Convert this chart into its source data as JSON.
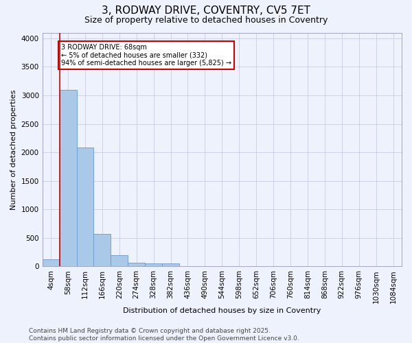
{
  "title1": "3, RODWAY DRIVE, COVENTRY, CV5 7ET",
  "title2": "Size of property relative to detached houses in Coventry",
  "xlabel": "Distribution of detached houses by size in Coventry",
  "ylabel": "Number of detached properties",
  "categories": [
    "4sqm",
    "58sqm",
    "112sqm",
    "166sqm",
    "220sqm",
    "274sqm",
    "328sqm",
    "382sqm",
    "436sqm",
    "490sqm",
    "544sqm",
    "598sqm",
    "652sqm",
    "706sqm",
    "760sqm",
    "814sqm",
    "868sqm",
    "922sqm",
    "976sqm",
    "1030sqm",
    "1084sqm"
  ],
  "values": [
    130,
    3100,
    2090,
    575,
    195,
    70,
    55,
    50,
    0,
    0,
    0,
    0,
    0,
    0,
    0,
    0,
    0,
    0,
    0,
    0,
    0
  ],
  "bar_color": "#aac8e8",
  "bar_edge_color": "#6699cc",
  "vline_color": "#cc0000",
  "annotation_text": "3 RODWAY DRIVE: 68sqm\n← 5% of detached houses are smaller (332)\n94% of semi-detached houses are larger (5,825) →",
  "annotation_box_color": "#cc0000",
  "ylim": [
    0,
    4100
  ],
  "yticks": [
    0,
    500,
    1000,
    1500,
    2000,
    2500,
    3000,
    3500,
    4000
  ],
  "footer1": "Contains HM Land Registry data © Crown copyright and database right 2025.",
  "footer2": "Contains public sector information licensed under the Open Government Licence v3.0.",
  "bg_color": "#eef2fc",
  "plot_bg_color": "#eef2fc",
  "grid_color": "#c8cce0",
  "title1_fontsize": 11,
  "title2_fontsize": 9,
  "axis_fontsize": 7.5,
  "ylabel_fontsize": 8,
  "xlabel_fontsize": 8,
  "footer_fontsize": 6.5
}
